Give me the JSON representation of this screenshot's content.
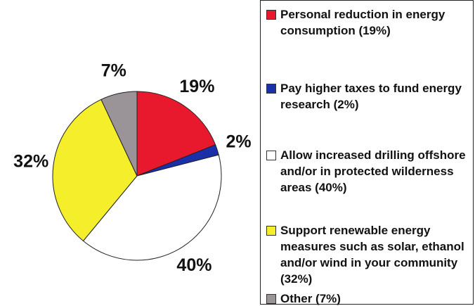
{
  "chart_data": {
    "type": "pie",
    "categories": [
      "Personal reduction in energy consumption (19%)",
      "Pay higher taxes to fund energy research (2%)",
      "Allow increased drilling offshore and/or in protected wilderness areas (40%)",
      "Support renewable energy measures such as solar, ethanol and/or wind in your community (32%)",
      "Other (7%)"
    ],
    "values": [
      19,
      2,
      40,
      32,
      7
    ],
    "value_labels": [
      "19%",
      "2%",
      "40%",
      "32%",
      "7%"
    ],
    "colors": [
      "#e8192c",
      "#1b2fa8",
      "#ffffff",
      "#f5ee2a",
      "#9a9498"
    ]
  }
}
